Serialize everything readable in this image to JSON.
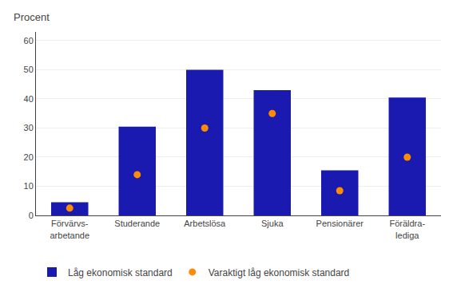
{
  "chart_data": {
    "type": "bar",
    "ylabel": "Procent",
    "categories": [
      "Förvärvs-\narbetande",
      "Studerande",
      "Arbetslösa",
      "Sjuka",
      "Pensionärer",
      "Föräldra-\nlediga"
    ],
    "series": [
      {
        "name": "Låg ekonomisk standard",
        "type": "bar",
        "color": "#1a1ab0",
        "values": [
          4.5,
          30.5,
          50,
          43,
          15.5,
          40.5
        ]
      },
      {
        "name": "Varaktigt låg ekonomisk standard",
        "type": "scatter",
        "marker": "circle",
        "color": "#FF8C00",
        "values": [
          2.5,
          14,
          30,
          35,
          8.5,
          20
        ]
      }
    ],
    "ylim": [
      0,
      63
    ],
    "yticks": [
      0,
      10,
      20,
      30,
      40,
      50,
      60
    ],
    "grid": true,
    "legend": "bottom"
  }
}
